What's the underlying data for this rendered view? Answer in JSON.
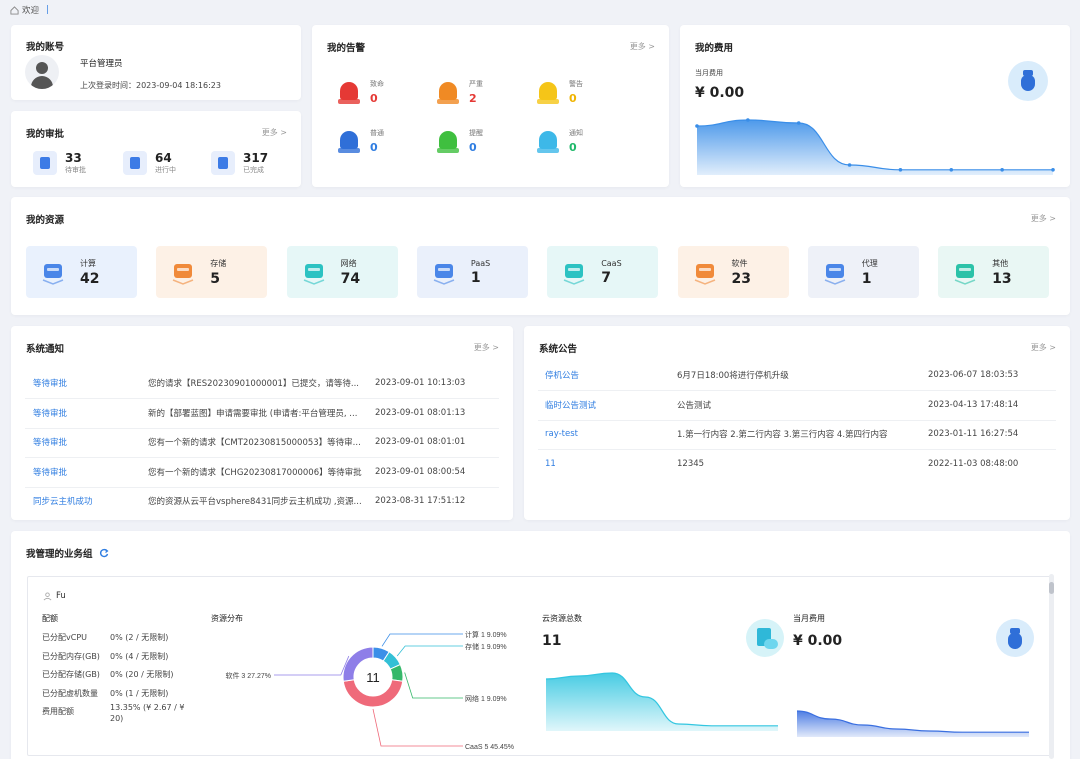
{
  "breadcrumb": {
    "home_icon": "home-icon",
    "label": "欢迎"
  },
  "account": {
    "title": "我的账号",
    "role": "平台管理员",
    "last_login": "上次登录时间：2023-09-04 18:16:23"
  },
  "approval": {
    "title": "我的审批",
    "more": "更多 >",
    "items": [
      {
        "value": "33",
        "label": "待审批",
        "icon": "user-icon"
      },
      {
        "value": "64",
        "label": "进行中",
        "icon": "user-progress-icon"
      },
      {
        "value": "317",
        "label": "已完成",
        "icon": "clipboard-check-icon"
      }
    ]
  },
  "alarms": {
    "title": "我的告警",
    "more": "更多 >",
    "items": [
      {
        "label": "致命",
        "value": "0",
        "color": "#e53935",
        "valcolor": "#e53935"
      },
      {
        "label": "严重",
        "value": "2",
        "color": "#f08a24",
        "valcolor": "#e53935"
      },
      {
        "label": "警告",
        "value": "0",
        "color": "#f5c518",
        "valcolor": "#f0b400"
      },
      {
        "label": "普通",
        "value": "0",
        "color": "#2f6fd8",
        "valcolor": "#2f7de1"
      },
      {
        "label": "提醒",
        "value": "0",
        "color": "#3fbf3f",
        "valcolor": "#2f7de1"
      },
      {
        "label": "通知",
        "value": "0",
        "color": "#3db8e8",
        "valcolor": "#1fb86a"
      }
    ]
  },
  "fees": {
    "title": "我的费用",
    "month_label": "当月费用",
    "amount": "¥ 0.00",
    "icon": "money-bag-icon"
  },
  "resources": {
    "title": "我的资源",
    "more": "更多 >",
    "items": [
      {
        "label": "计算",
        "value": "42",
        "bg": "#e9f1fd",
        "icon": "server-icon",
        "color": "#4a86e8"
      },
      {
        "label": "存储",
        "value": "5",
        "bg": "#fdf1e6",
        "icon": "storage-icon",
        "color": "#f08a3a"
      },
      {
        "label": "网络",
        "value": "74",
        "bg": "#e6f7f7",
        "icon": "wifi-icon",
        "color": "#2cc2c2"
      },
      {
        "label": "PaaS",
        "value": "1",
        "bg": "#eaf0fb",
        "icon": "network-nodes-icon",
        "color": "#4a86e8"
      },
      {
        "label": "CaaS",
        "value": "7",
        "bg": "#e6f7f7",
        "icon": "container-icon",
        "color": "#2cc2c2"
      },
      {
        "label": "软件",
        "value": "23",
        "bg": "#fdf1e6",
        "icon": "software-box-icon",
        "color": "#f08a3a"
      },
      {
        "label": "代理",
        "value": "1",
        "bg": "#eef1f8",
        "icon": "proxy-icon",
        "color": "#4a86e8"
      },
      {
        "label": "其他",
        "value": "13",
        "bg": "#e9f7f4",
        "icon": "grid-icon",
        "color": "#2cc2a8"
      }
    ]
  },
  "notices": {
    "title": "系统通知",
    "more": "更多 >",
    "rows": [
      {
        "type": "等待审批",
        "text": "您的请求【RES20230901000001】已提交，请等待...",
        "time": "2023-09-01 10:13:03"
      },
      {
        "type": "等待审批",
        "text": "新的【部署蓝图】申请需要审批 (申请者:平台管理员, ...",
        "time": "2023-09-01 08:01:13"
      },
      {
        "type": "等待审批",
        "text": "您有一个新的请求【CMT20230815000053】等待审...",
        "time": "2023-09-01 08:01:01"
      },
      {
        "type": "等待审批",
        "text": "您有一个新的请求【CHG20230817000006】等待审批",
        "time": "2023-09-01 08:00:54"
      },
      {
        "type": "同步云主机成功",
        "text": "您的资源从云平台vsphere8431同步云主机成功 ,资源...",
        "time": "2023-08-31 17:51:12"
      }
    ]
  },
  "bulletins": {
    "title": "系统公告",
    "more": "更多 >",
    "rows": [
      {
        "title": "停机公告",
        "content": "6月7日18:00将进行停机升级",
        "time": "2023-06-07 18:03:53"
      },
      {
        "title": "临时公告测试",
        "content": "公告测试",
        "time": "2023-04-13 17:48:14"
      },
      {
        "title": "ray-test",
        "content": "1.第一行内容 2.第二行内容 3.第三行内容 4.第四行内容",
        "time": "2023-01-11 16:27:54"
      },
      {
        "title": "11",
        "content": "12345",
        "time": "2022-11-03 08:48:00"
      }
    ]
  },
  "groups": {
    "title": "我管理的业务组",
    "refresh_icon": "refresh-icon",
    "group_icon": "user-icon",
    "group_name": "Fu",
    "quota_title": "配额",
    "quota": [
      {
        "k": "已分配vCPU",
        "v": "0% (2 / 无限制)"
      },
      {
        "k": "已分配内存(GB)",
        "v": "0% (4 / 无限制)"
      },
      {
        "k": "已分配存储(GB)",
        "v": "0% (20 / 无限制)"
      },
      {
        "k": "已分配虚机数量",
        "v": "0% (1 / 无限制)"
      },
      {
        "k": "费用配额",
        "v": "13.35% (¥ 2.67 / ¥ 20)"
      }
    ],
    "dist_title": "资源分布",
    "cloud_title": "云资源总数",
    "cloud_total": "11",
    "fee_title": "当月费用",
    "fee_amount": "¥ 0.00"
  },
  "chart_data": [
    {
      "type": "pie",
      "title": "资源分布",
      "total_label": "11",
      "slices": [
        {
          "name": "软件",
          "value": 3,
          "percent": "27.27%",
          "color": "#8e7ee8",
          "label": "软件 3 27.27%"
        },
        {
          "name": "计算",
          "value": 1,
          "percent": "9.09%",
          "color": "#3b8fe8",
          "label": "计算 1 9.09%"
        },
        {
          "name": "存储",
          "value": 1,
          "percent": "9.09%",
          "color": "#33c0d6",
          "label": "存储 1 9.09%"
        },
        {
          "name": "网络",
          "value": 1,
          "percent": "9.09%",
          "color": "#35b86a",
          "label": "网络 1 9.09%"
        },
        {
          "name": "CaaS",
          "value": 5,
          "percent": "45.45%",
          "color": "#ef6a7a",
          "label": "CaaS 5 45.45%"
        }
      ]
    },
    {
      "type": "area",
      "title": "我的费用",
      "values": [
        0.75,
        0.85,
        0.8,
        0.1,
        0.02,
        0.02,
        0.02,
        0.02
      ],
      "color": "#3a8ee8"
    },
    {
      "type": "area",
      "title": "云资源总数",
      "values": [
        0.8,
        0.85,
        0.9,
        0.5,
        0.05,
        0.02,
        0.02,
        0.02
      ],
      "color": "#33c6e0"
    },
    {
      "type": "area",
      "title": "当月费用",
      "values": [
        0.55,
        0.35,
        0.2,
        0.1,
        0.05,
        0.02,
        0.02,
        0.02
      ],
      "color": "#3a6fe0"
    }
  ]
}
